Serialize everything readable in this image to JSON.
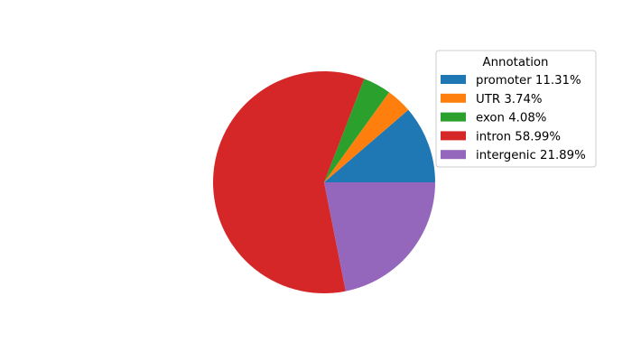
{
  "chart_data": {
    "type": "pie",
    "title": "",
    "start_angle_deg": 0,
    "direction": "counterclockwise",
    "legend": {
      "title": "Annotation",
      "placement": "upper-right"
    },
    "slices": [
      {
        "label": "promoter 11.31%",
        "category": "promoter",
        "value": 11.31,
        "color": "#1f77b4"
      },
      {
        "label": "UTR 3.74%",
        "category": "UTR",
        "value": 3.74,
        "color": "#ff7f0e"
      },
      {
        "label": "exon 4.08%",
        "category": "exon",
        "value": 4.08,
        "color": "#2ca02c"
      },
      {
        "label": "intron 58.99%",
        "category": "intron",
        "value": 58.99,
        "color": "#d62728"
      },
      {
        "label": "intergenic 21.89%",
        "category": "intergenic",
        "value": 21.89,
        "color": "#9467bd"
      }
    ]
  }
}
